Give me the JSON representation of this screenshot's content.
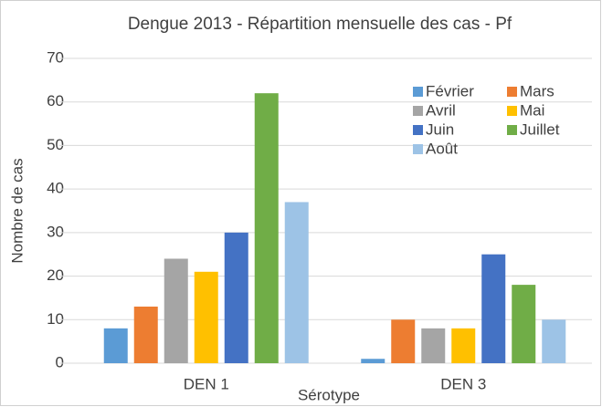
{
  "chart_data": {
    "type": "bar",
    "title": "Dengue 2013 - Répartition mensuelle des cas - Pf",
    "xlabel": "Sérotype",
    "ylabel": "Nombre de cas",
    "categories": [
      "DEN 1",
      "DEN 3"
    ],
    "series": [
      {
        "name": "Février",
        "color": "#5b9bd5",
        "values": [
          8,
          1
        ]
      },
      {
        "name": "Mars",
        "color": "#ed7d31",
        "values": [
          13,
          10
        ]
      },
      {
        "name": "Avril",
        "color": "#a5a5a5",
        "values": [
          24,
          8
        ]
      },
      {
        "name": "Mai",
        "color": "#ffc000",
        "values": [
          21,
          8
        ]
      },
      {
        "name": "Juin",
        "color": "#4472c4",
        "values": [
          30,
          25
        ]
      },
      {
        "name": "Juillet",
        "color": "#70ad47",
        "values": [
          62,
          18
        ]
      },
      {
        "name": "Août",
        "color": "#9dc3e6",
        "values": [
          37,
          10
        ]
      }
    ],
    "ylim": [
      0,
      70
    ],
    "yticks": [
      0,
      10,
      20,
      30,
      40,
      50,
      60,
      70
    ],
    "grid": true,
    "legend": "top-right"
  }
}
